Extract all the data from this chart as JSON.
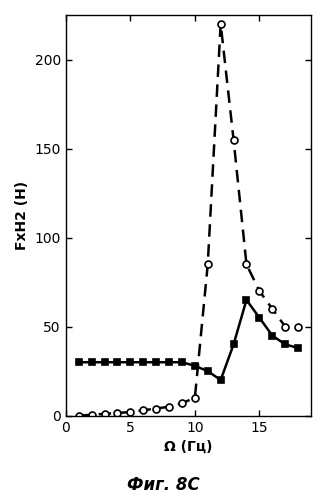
{
  "series1": {
    "x": [
      1,
      2,
      3,
      4,
      5,
      6,
      7,
      8,
      9,
      10,
      11,
      12,
      13,
      14,
      15,
      16,
      17,
      18
    ],
    "y": [
      0,
      0.5,
      1,
      1.5,
      2,
      3,
      4,
      5,
      7,
      10,
      85,
      220,
      155,
      85,
      70,
      60,
      50,
      50
    ],
    "linestyle": "--",
    "marker": "o",
    "marker_size": 5,
    "color": "#000000",
    "markerfacecolor": "white",
    "linewidth": 1.8
  },
  "series2": {
    "x": [
      1,
      2,
      3,
      4,
      5,
      6,
      7,
      8,
      9,
      10,
      11,
      12,
      13,
      14,
      15,
      16,
      17,
      18
    ],
    "y": [
      30,
      30,
      30,
      30,
      30,
      30,
      30,
      30,
      30,
      28,
      25,
      20,
      40,
      65,
      55,
      45,
      40,
      38
    ],
    "linestyle": "-",
    "marker": "s",
    "marker_size": 5,
    "color": "#000000",
    "markerfacecolor": "#000000",
    "linewidth": 1.8
  },
  "xlabel": "Ω (Гц)",
  "ylabel": "FxH2 (H)",
  "xlim": [
    0,
    19
  ],
  "ylim": [
    0,
    225
  ],
  "xticks": [
    0,
    5,
    10,
    15
  ],
  "yticks": [
    0,
    50,
    100,
    150,
    200
  ],
  "caption": "Фиг. 8C",
  "background_color": "#ffffff",
  "fig_width": 3.26,
  "fig_height": 4.99,
  "dpi": 100
}
